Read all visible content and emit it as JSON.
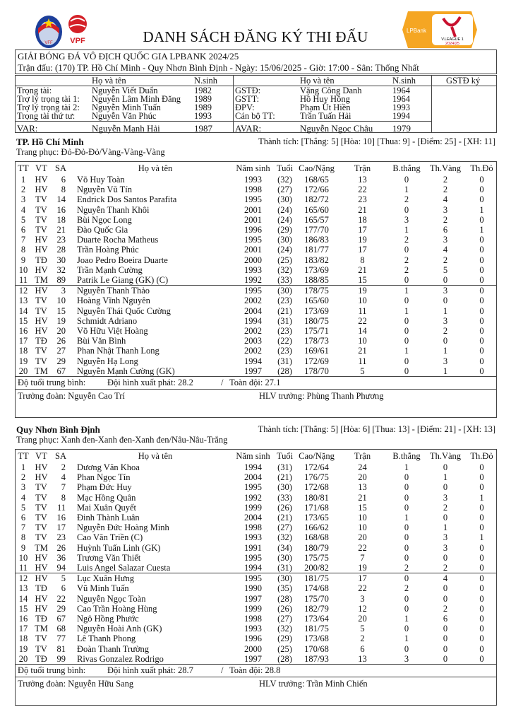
{
  "logos": {
    "vff": "VFF",
    "vpf": "VPF",
    "league": "LPBank V.LEAGUE 1 2024/25"
  },
  "title": "DANH SÁCH ĐĂNG KÝ THI ĐẤU",
  "match": {
    "competition": "GIẢI BÓNG ĐÁ VÔ ĐỊCH QUỐC GIA LPBANK 2024/25",
    "info": "Trận đấu: (170) TP. Hồ Chí Minh - Quy Nhơn Bình Định - Ngày: 15/06/2025 - Giờ: 17:00 - Sân: Thống Nhất"
  },
  "officials": {
    "h_name": "Họ và tên",
    "h_year": "N.sinh",
    "h_sign": "GSTĐ ký",
    "left": [
      [
        "Trọng tài:",
        "Nguyễn Viết Duẩn",
        "1982"
      ],
      [
        "Trợ lý trọng tài 1:",
        "Nguyễn Lâm Minh Đăng",
        "1989"
      ],
      [
        "Trợ lý trọng tài 2:",
        "Nguyễn Minh Tuấn",
        "1989"
      ],
      [
        "Trọng tài thứ tư:",
        "Nguyễn Văn Phúc",
        "1993"
      ],
      [
        "VAR:",
        "Nguyễn Mạnh Hải",
        "1987"
      ]
    ],
    "right": [
      [
        "GSTĐ:",
        "Vặng Công Danh",
        "1964"
      ],
      [
        "GSTT:",
        "Hồ Huy Hồng",
        "1964"
      ],
      [
        "ĐPV:",
        "Phạm Út Hiền",
        "1993"
      ],
      [
        "Cán bộ TT:",
        "Trần Tuấn Hải",
        "1994"
      ],
      [
        "AVAR:",
        "Nguyễn Ngọc Châu",
        "1979"
      ]
    ]
  },
  "columns": [
    "TT",
    "VT",
    "SA",
    "Họ và tên",
    "Năm sinh",
    "Tuổi",
    "Cao/Nặng",
    "Trận",
    "B.thắng",
    "Th.Vàng",
    "Th.Đỏ"
  ],
  "teams": [
    {
      "name": "TP. Hồ Chí Minh",
      "record": "Thành tích: [Thắng: 5] [Hòa: 10] [Thua: 9] - [Điểm: 25] - [XH: 11]",
      "kit": "Trang phục: Đỏ-Đỏ-Đỏ/Vàng-Vàng-Vàng",
      "players": [
        [
          "1",
          "HV",
          "6",
          "Võ Huy Toàn",
          "1993",
          "(32)",
          "168/65",
          "13",
          "0",
          "2",
          "0"
        ],
        [
          "2",
          "HV",
          "8",
          "Nguyễn Vũ Tín",
          "1998",
          "(27)",
          "172/66",
          "22",
          "1",
          "2",
          "0"
        ],
        [
          "3",
          "TV",
          "14",
          "Endrick Dos Santos Parafita",
          "1995",
          "(30)",
          "182/72",
          "23",
          "2",
          "4",
          "0"
        ],
        [
          "4",
          "TV",
          "16",
          "Nguyễn Thanh Khôi",
          "2001",
          "(24)",
          "165/60",
          "21",
          "0",
          "3",
          "1"
        ],
        [
          "5",
          "TV",
          "18",
          "Bùi Ngọc Long",
          "2001",
          "(24)",
          "165/57",
          "18",
          "3",
          "2",
          "0"
        ],
        [
          "6",
          "TV",
          "21",
          "Đào Quốc Gia",
          "1996",
          "(29)",
          "177/70",
          "17",
          "1",
          "6",
          "1"
        ],
        [
          "7",
          "HV",
          "23",
          "Duarte Rocha Matheus",
          "1995",
          "(30)",
          "186/83",
          "19",
          "2",
          "3",
          "0"
        ],
        [
          "8",
          "HV",
          "28",
          "Trần Hoàng Phúc",
          "2001",
          "(24)",
          "181/77",
          "17",
          "0",
          "4",
          "0"
        ],
        [
          "9",
          "TĐ",
          "30",
          "Joao Pedro Boeira Duarte",
          "2000",
          "(25)",
          "183/82",
          "8",
          "2",
          "2",
          "0"
        ],
        [
          "10",
          "HV",
          "32",
          "Trần Mạnh Cường",
          "1993",
          "(32)",
          "173/69",
          "21",
          "2",
          "5",
          "0"
        ],
        [
          "11",
          "TM",
          "89",
          "Patrik Le Giang (GK) (C)",
          "1992",
          "(33)",
          "188/85",
          "15",
          "0",
          "0",
          "0"
        ],
        [
          "12",
          "HV",
          "3",
          "Nguyễn Thanh Thảo",
          "1995",
          "(30)",
          "178/75",
          "19",
          "1",
          "3",
          "0"
        ],
        [
          "13",
          "TV",
          "10",
          "Hoàng Vĩnh Nguyên",
          "2002",
          "(23)",
          "165/60",
          "10",
          "0",
          "0",
          "0"
        ],
        [
          "14",
          "TV",
          "15",
          "Nguyễn Thái Quốc Cường",
          "2004",
          "(21)",
          "173/69",
          "11",
          "1",
          "1",
          "0"
        ],
        [
          "15",
          "HV",
          "19",
          "Schmidt Adriano",
          "1994",
          "(31)",
          "180/75",
          "22",
          "0",
          "3",
          "0"
        ],
        [
          "16",
          "HV",
          "20",
          "Võ Hữu Việt Hoàng",
          "2002",
          "(23)",
          "175/71",
          "14",
          "0",
          "2",
          "0"
        ],
        [
          "17",
          "TĐ",
          "26",
          "Bùi Văn Bình",
          "2003",
          "(22)",
          "178/73",
          "10",
          "0",
          "0",
          "0"
        ],
        [
          "18",
          "TV",
          "27",
          "Phan Nhật Thanh Long",
          "2002",
          "(23)",
          "169/61",
          "21",
          "1",
          "1",
          "0"
        ],
        [
          "19",
          "TV",
          "29",
          "Nguyễn Hạ Long",
          "1994",
          "(31)",
          "172/69",
          "11",
          "0",
          "3",
          "0"
        ],
        [
          "20",
          "TM",
          "67",
          "Nguyễn Mạnh Cường (GK)",
          "1997",
          "(28)",
          "178/70",
          "5",
          "0",
          "1",
          "0"
        ]
      ],
      "avg_label": "Độ tuổi trung bình:",
      "avg_start": "Đội hình xuất phát: 28.2",
      "avg_sep": "/",
      "avg_all": "Toàn đội: 27.1",
      "manager": "Trưởng đoàn: Nguyễn Cao Trí",
      "coach": "HLV trưởng: Phùng Thanh Phương"
    },
    {
      "name": "Quy Nhơn Bình Định",
      "record": "Thành tích: [Thắng: 5] [Hòa: 6] [Thua: 13] - [Điểm: 21] - [XH: 13]",
      "kit": "Trang phục: Xanh đen-Xanh đen-Xanh đen/Nâu-Nâu-Trắng",
      "players": [
        [
          "1",
          "HV",
          "2",
          "Dương Văn Khoa",
          "1994",
          "(31)",
          "172/64",
          "24",
          "1",
          "0",
          "0"
        ],
        [
          "2",
          "HV",
          "4",
          "Phan Ngọc Tín",
          "2004",
          "(21)",
          "176/75",
          "20",
          "0",
          "1",
          "0"
        ],
        [
          "3",
          "TV",
          "7",
          "Phạm Đức Huy",
          "1995",
          "(30)",
          "172/68",
          "13",
          "0",
          "0",
          "0"
        ],
        [
          "4",
          "TV",
          "8",
          "Mạc Hồng Quân",
          "1992",
          "(33)",
          "180/81",
          "21",
          "0",
          "3",
          "1"
        ],
        [
          "5",
          "TV",
          "11",
          "Mai Xuân Quyết",
          "1999",
          "(26)",
          "171/68",
          "15",
          "0",
          "2",
          "0"
        ],
        [
          "6",
          "TV",
          "16",
          "Đinh Thành Luân",
          "2004",
          "(21)",
          "173/65",
          "10",
          "1",
          "0",
          "0"
        ],
        [
          "7",
          "TV",
          "17",
          "Nguyễn Đức Hoàng Minh",
          "1998",
          "(27)",
          "166/62",
          "10",
          "0",
          "1",
          "0"
        ],
        [
          "8",
          "TV",
          "23",
          "Cao Văn Triền (C)",
          "1993",
          "(32)",
          "168/68",
          "20",
          "0",
          "3",
          "1"
        ],
        [
          "9",
          "TM",
          "26",
          "Huỳnh Tuấn Linh (GK)",
          "1991",
          "(34)",
          "180/79",
          "22",
          "0",
          "3",
          "0"
        ],
        [
          "10",
          "HV",
          "36",
          "Trương Văn Thiết",
          "1995",
          "(30)",
          "175/75",
          "7",
          "0",
          "0",
          "0"
        ],
        [
          "11",
          "HV",
          "94",
          "Luis Angel Salazar Cuesta",
          "1994",
          "(31)",
          "200/82",
          "19",
          "2",
          "2",
          "0"
        ],
        [
          "12",
          "HV",
          "5",
          "Lục Xuân Hưng",
          "1995",
          "(30)",
          "181/75",
          "17",
          "0",
          "4",
          "0"
        ],
        [
          "13",
          "TĐ",
          "6",
          "Vũ Minh Tuấn",
          "1990",
          "(35)",
          "174/68",
          "22",
          "2",
          "0",
          "0"
        ],
        [
          "14",
          "HV",
          "22",
          "Nguyễn Ngọc Toàn",
          "1997",
          "(28)",
          "175/70",
          "3",
          "0",
          "0",
          "0"
        ],
        [
          "15",
          "HV",
          "29",
          "Cao Trần Hoàng Hùng",
          "1999",
          "(26)",
          "182/79",
          "12",
          "0",
          "2",
          "0"
        ],
        [
          "16",
          "TĐ",
          "67",
          "Ngô Hồng Phước",
          "1998",
          "(27)",
          "173/64",
          "20",
          "1",
          "6",
          "0"
        ],
        [
          "17",
          "TM",
          "68",
          "Nguyễn Hoài Anh (GK)",
          "1993",
          "(32)",
          "181/75",
          "5",
          "0",
          "0",
          "0"
        ],
        [
          "18",
          "TV",
          "77",
          "Lê Thanh Phong",
          "1996",
          "(29)",
          "173/68",
          "2",
          "1",
          "0",
          "0"
        ],
        [
          "19",
          "TV",
          "81",
          "Đoàn Thanh Trường",
          "2000",
          "(25)",
          "170/68",
          "6",
          "0",
          "0",
          "0"
        ],
        [
          "20",
          "TĐ",
          "99",
          "Rivas Gonzalez Rodrigo",
          "1997",
          "(28)",
          "187/93",
          "13",
          "3",
          "0",
          "0"
        ]
      ],
      "avg_label": "Độ tuổi trung bình:",
      "avg_start": "Đội hình xuất phát: 28.7",
      "avg_sep": "/",
      "avg_all": "Toàn đội: 28.8",
      "manager": "Trưởng đoàn: Nguyễn Hữu Sang",
      "coach": "HLV trưởng: Trần Minh Chiến"
    }
  ]
}
